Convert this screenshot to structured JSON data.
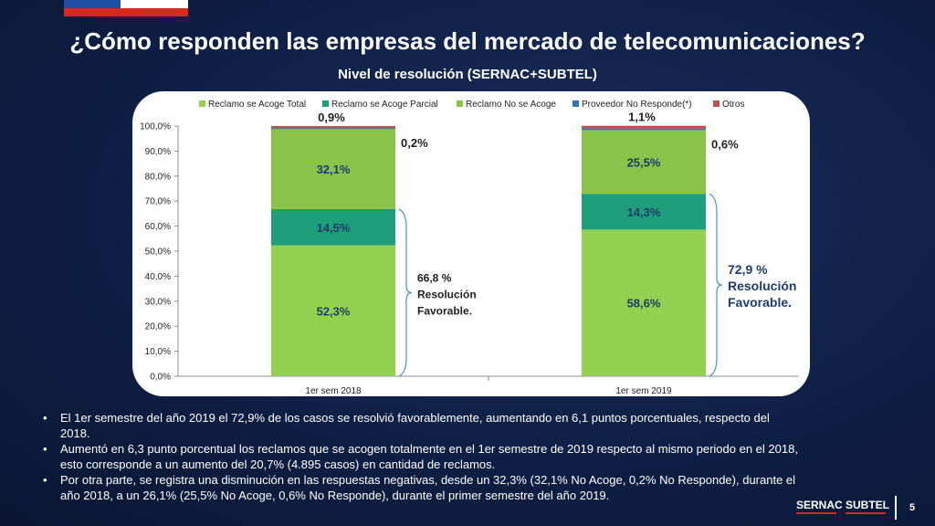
{
  "title": "¿Cómo responden las empresas del mercado de telecomunicaciones?",
  "subtitle": "Nivel de resolución (SERNAC+SUBTEL)",
  "chart_data": {
    "type": "bar",
    "stacked": true,
    "categories": [
      "1er sem 2018",
      "1er sem 2019"
    ],
    "series": [
      {
        "name": "Reclamo se Acoge Total",
        "values": [
          52.3,
          58.6
        ],
        "labels": [
          "52,3%",
          "58,6%"
        ],
        "color": "#92d050"
      },
      {
        "name": "Reclamo se Acoge Parcial",
        "values": [
          14.5,
          14.3
        ],
        "labels": [
          "14,5%",
          "14,3%"
        ],
        "color": "#1f9e7c"
      },
      {
        "name": "Reclamo No se Acoge",
        "values": [
          32.1,
          25.5
        ],
        "labels": [
          "32,1%",
          "25,5%"
        ],
        "color": "#8bc34a"
      },
      {
        "name": "Proveedor No Responde(*)",
        "values": [
          0.2,
          0.6
        ],
        "labels": [
          "0,2%",
          "0,6%"
        ],
        "color": "#2e75b6"
      },
      {
        "name": "Otros",
        "values": [
          0.9,
          1.1
        ],
        "labels": [
          "0,9%",
          "1,1%"
        ],
        "color": "#c0504d"
      }
    ],
    "ylim": [
      0,
      100
    ],
    "yticks": [
      "0,0%",
      "10,0%",
      "20,0%",
      "30,0%",
      "40,0%",
      "50,0%",
      "60,0%",
      "70,0%",
      "80,0%",
      "90,0%",
      "100,0%"
    ],
    "legend_position": "top",
    "annotations": [
      {
        "text": [
          "66,8 %",
          "Resolución",
          "Favorable."
        ],
        "category": "1er sem 2018"
      },
      {
        "text": [
          "72,9 %",
          "Resolución",
          "Favorable."
        ],
        "category": "1er sem 2019"
      }
    ]
  },
  "bullets": [
    "El 1er semestre del año 2019 el 72,9% de los casos se resolvió favorablemente, aumentando en 6,1 puntos porcentuales, respecto del 2018.",
    "Aumentó en 6,3 punto porcentual los reclamos que se acogen totalmente en el 1er semestre de 2019 respecto al mismo periodo en el 2018, esto corresponde a un aumento del 20,7% (4.895 casos) en cantidad de reclamos.",
    "Por otra parte, se registra una disminución en las respuestas negativas, desde un 32,3% (32,1% No Acoge, 0,2% No Responde), durante el año 2018, a un 26,1% (25,5% No Acoge, 0,6% No Responde), durante el primer semestre del año 2019."
  ],
  "footer": {
    "logo1": "SERNAC",
    "logo2": "SUBTEL",
    "page": "5"
  }
}
